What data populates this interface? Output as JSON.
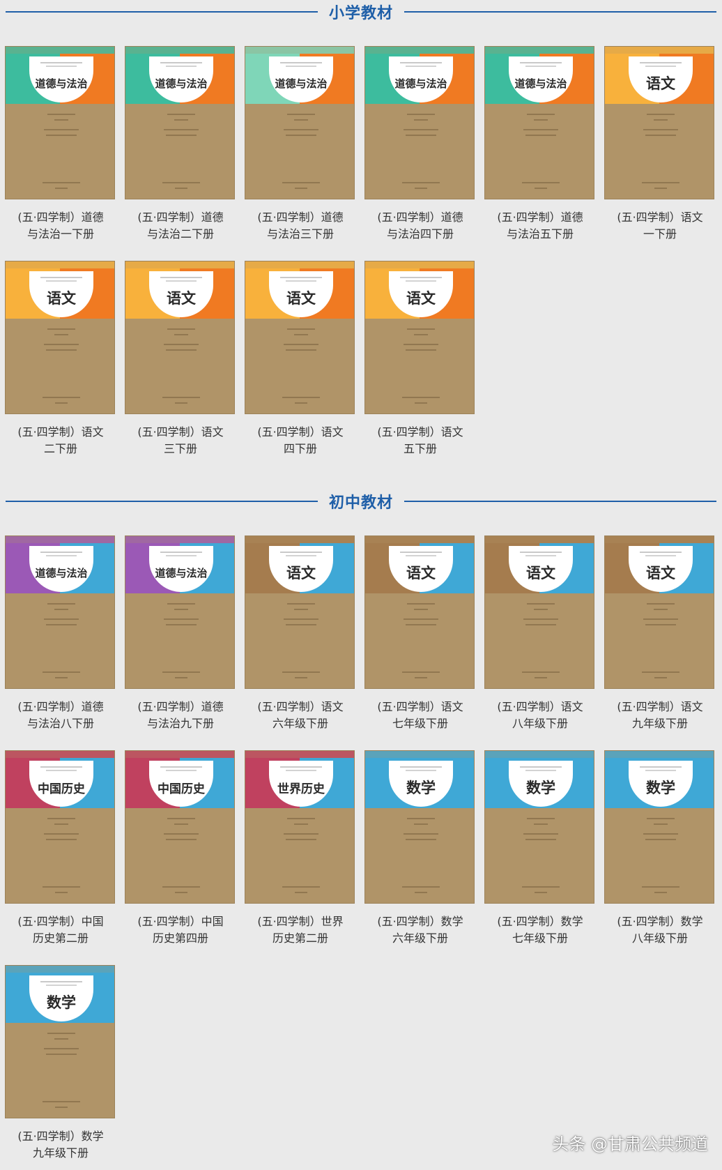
{
  "sections": [
    {
      "title": "小学教材",
      "books": [
        {
          "subject": "道德与法治",
          "caption_line1": "(五·四学制）道德",
          "caption_line2": "与法治一下册",
          "left_color": "#3dbc9e",
          "right_color": "#f07a22"
        },
        {
          "subject": "道德与法治",
          "caption_line1": "(五·四学制）道德",
          "caption_line2": "与法治二下册",
          "left_color": "#3dbc9e",
          "right_color": "#f07a22"
        },
        {
          "subject": "道德与法治",
          "caption_line1": "(五·四学制）道德",
          "caption_line2": "与法治三下册",
          "left_color": "#7fd6b8",
          "right_color": "#f07a22"
        },
        {
          "subject": "道德与法治",
          "caption_line1": "(五·四学制）道德",
          "caption_line2": "与法治四下册",
          "left_color": "#3dbc9e",
          "right_color": "#f07a22"
        },
        {
          "subject": "道德与法治",
          "caption_line1": "(五·四学制）道德",
          "caption_line2": "与法治五下册",
          "left_color": "#3dbc9e",
          "right_color": "#f07a22"
        },
        {
          "subject": "语文",
          "caption_line1": "(五·四学制）语文",
          "caption_line2": "一下册",
          "left_color": "#f8b13c",
          "right_color": "#f07a22"
        },
        {
          "subject": "语文",
          "caption_line1": "(五·四学制）语文",
          "caption_line2": "二下册",
          "left_color": "#f8b13c",
          "right_color": "#f07a22"
        },
        {
          "subject": "语文",
          "caption_line1": "(五·四学制）语文",
          "caption_line2": "三下册",
          "left_color": "#f8b13c",
          "right_color": "#f07a22"
        },
        {
          "subject": "语文",
          "caption_line1": "(五·四学制）语文",
          "caption_line2": "四下册",
          "left_color": "#f8b13c",
          "right_color": "#f07a22"
        },
        {
          "subject": "语文",
          "caption_line1": "(五·四学制）语文",
          "caption_line2": "五下册",
          "left_color": "#f8b13c",
          "right_color": "#f07a22"
        }
      ]
    },
    {
      "title": "初中教材",
      "books": [
        {
          "subject": "道德与法治",
          "caption_line1": "(五·四学制）道德",
          "caption_line2": "与法治八下册",
          "left_color": "#9b59b6",
          "right_color": "#3fa8d6"
        },
        {
          "subject": "道德与法治",
          "caption_line1": "(五·四学制）道德",
          "caption_line2": "与法治九下册",
          "left_color": "#9b59b6",
          "right_color": "#3fa8d6"
        },
        {
          "subject": "语文",
          "caption_line1": "(五·四学制）语文",
          "caption_line2": "六年级下册",
          "left_color": "#a57c4e",
          "right_color": "#3fa8d6"
        },
        {
          "subject": "语文",
          "caption_line1": "(五·四学制）语文",
          "caption_line2": "七年级下册",
          "left_color": "#a57c4e",
          "right_color": "#3fa8d6"
        },
        {
          "subject": "语文",
          "caption_line1": "(五·四学制）语文",
          "caption_line2": "八年级下册",
          "left_color": "#a57c4e",
          "right_color": "#3fa8d6"
        },
        {
          "subject": "语文",
          "caption_line1": "(五·四学制）语文",
          "caption_line2": "九年级下册",
          "left_color": "#a57c4e",
          "right_color": "#3fa8d6"
        },
        {
          "subject": "中国历史",
          "caption_line1": "(五·四学制）中国",
          "caption_line2": "历史第二册",
          "left_color": "#c0415f",
          "right_color": "#3fa8d6"
        },
        {
          "subject": "中国历史",
          "caption_line1": "(五·四学制）中国",
          "caption_line2": "历史第四册",
          "left_color": "#c0415f",
          "right_color": "#3fa8d6"
        },
        {
          "subject": "世界历史",
          "caption_line1": "(五·四学制）世界",
          "caption_line2": "历史第二册",
          "left_color": "#c0415f",
          "right_color": "#3fa8d6"
        },
        {
          "subject": "数学",
          "caption_line1": "(五·四学制）数学",
          "caption_line2": "六年级下册",
          "left_color": "#3fa8d6",
          "right_color": "#3fa8d6"
        },
        {
          "subject": "数学",
          "caption_line1": "(五·四学制）数学",
          "caption_line2": "七年级下册",
          "left_color": "#3fa8d6",
          "right_color": "#3fa8d6"
        },
        {
          "subject": "数学",
          "caption_line1": "(五·四学制）数学",
          "caption_line2": "八年级下册",
          "left_color": "#3fa8d6",
          "right_color": "#3fa8d6"
        },
        {
          "subject": "数学",
          "caption_line1": "(五·四学制）数学",
          "caption_line2": "九年级下册",
          "left_color": "#3fa8d6",
          "right_color": "#3fa8d6"
        }
      ]
    }
  ],
  "watermark": "头条 @甘肃公共频道"
}
